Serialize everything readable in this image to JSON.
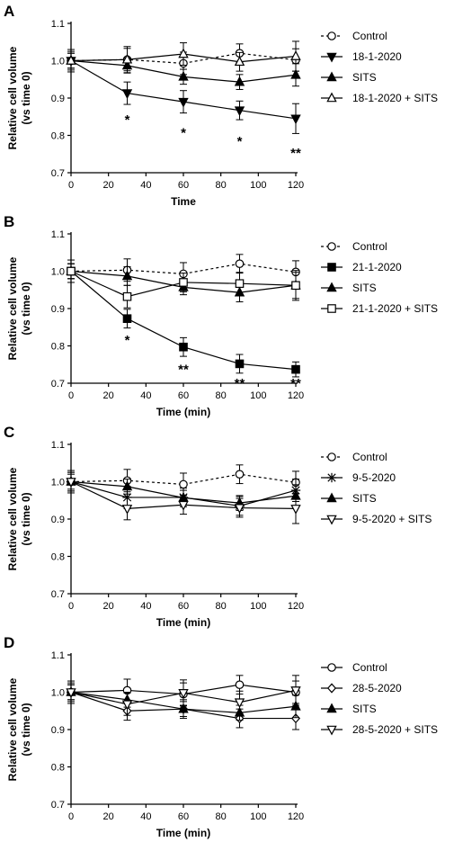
{
  "figure": {
    "panels": [
      "A",
      "B",
      "C",
      "D"
    ]
  },
  "chart_data": [
    {
      "panel": "A",
      "type": "line",
      "xlabel": "Time",
      "ylabel": "Relative cell volume (vs time 0)",
      "ylabel_lines": [
        "Relative cell volume",
        "(vs time 0)"
      ],
      "xlim": [
        0,
        120
      ],
      "ylim": [
        0.7,
        1.1
      ],
      "xticks": [
        0,
        20,
        40,
        60,
        80,
        100,
        120
      ],
      "yticks": [
        0.7,
        0.8,
        0.9,
        1.0,
        1.1
      ],
      "legend_position": "right",
      "x": [
        0,
        30,
        60,
        90,
        120
      ],
      "series": [
        {
          "name": "Control",
          "marker": "circle-open",
          "dashed": true,
          "values": [
            1.0,
            1.003,
            0.993,
            1.02,
            1.002
          ],
          "err": [
            0.03,
            0.03,
            0.03,
            0.025,
            0.03
          ]
        },
        {
          "name": "18-1-2020",
          "marker": "triangle-down-filled",
          "dashed": false,
          "values": [
            1.0,
            0.913,
            0.89,
            0.867,
            0.845
          ],
          "err": [
            0.025,
            0.03,
            0.03,
            0.025,
            0.04
          ]
        },
        {
          "name": "SITS",
          "marker": "triangle-up-filled",
          "dashed": false,
          "values": [
            1.0,
            0.987,
            0.957,
            0.943,
            0.962
          ],
          "err": [
            0.02,
            0.02,
            0.02,
            0.02,
            0.03
          ]
        },
        {
          "name": "18-1-2020 + SITS",
          "marker": "triangle-up-open",
          "dashed": false,
          "values": [
            1.0,
            1.003,
            1.018,
            0.997,
            1.012
          ],
          "err": [
            0.02,
            0.035,
            0.03,
            0.025,
            0.04
          ]
        }
      ],
      "annotations": [
        {
          "x": 30,
          "y": 0.845,
          "text": "*"
        },
        {
          "x": 60,
          "y": 0.81,
          "text": "*"
        },
        {
          "x": 90,
          "y": 0.787,
          "text": "*"
        },
        {
          "x": 120,
          "y": 0.755,
          "text": "**"
        }
      ]
    },
    {
      "panel": "B",
      "type": "line",
      "xlabel": "Time (min)",
      "ylabel": "Relative cell volume (vs time 0)",
      "ylabel_lines": [
        "Relative cell volume",
        "(vs time 0)"
      ],
      "xlim": [
        0,
        120
      ],
      "ylim": [
        0.7,
        1.1
      ],
      "xticks": [
        0,
        20,
        40,
        60,
        80,
        100,
        120
      ],
      "yticks": [
        0.7,
        0.8,
        0.9,
        1.0,
        1.1
      ],
      "legend_position": "right",
      "x": [
        0,
        30,
        60,
        90,
        120
      ],
      "series": [
        {
          "name": "Control",
          "marker": "circle-open",
          "dashed": true,
          "values": [
            1.0,
            1.003,
            0.993,
            1.02,
            0.998
          ],
          "err": [
            0.03,
            0.03,
            0.03,
            0.025,
            0.03
          ]
        },
        {
          "name": "21-1-2020",
          "marker": "square-filled",
          "dashed": false,
          "values": [
            1.0,
            0.873,
            0.797,
            0.752,
            0.737
          ],
          "err": [
            0.02,
            0.025,
            0.025,
            0.025,
            0.02
          ]
        },
        {
          "name": "SITS",
          "marker": "triangle-up-filled",
          "dashed": false,
          "values": [
            1.0,
            0.987,
            0.957,
            0.943,
            0.962
          ],
          "err": [
            0.02,
            0.025,
            0.02,
            0.025,
            0.035
          ]
        },
        {
          "name": "21-1-2020 + SITS",
          "marker": "square-open",
          "dashed": false,
          "values": [
            1.0,
            0.932,
            0.97,
            0.967,
            0.962
          ],
          "err": [
            0.02,
            0.03,
            0.025,
            0.03,
            0.04
          ]
        }
      ],
      "annotations": [
        {
          "x": 30,
          "y": 0.818,
          "text": "*"
        },
        {
          "x": 60,
          "y": 0.74,
          "text": "**"
        },
        {
          "x": 90,
          "y": 0.703,
          "text": "**"
        },
        {
          "x": 120,
          "y": 0.703,
          "text": "**"
        }
      ]
    },
    {
      "panel": "C",
      "type": "line",
      "xlabel": "Time  (min)",
      "ylabel": "Relative cell volume (vs time 0)",
      "ylabel_lines": [
        "Relative cell volume",
        "(vs time 0)"
      ],
      "xlim": [
        0,
        120
      ],
      "ylim": [
        0.7,
        1.1
      ],
      "xticks": [
        0,
        20,
        40,
        60,
        80,
        100,
        120
      ],
      "yticks": [
        0.7,
        0.8,
        0.9,
        1.0,
        1.1
      ],
      "legend_position": "right",
      "x": [
        0,
        30,
        60,
        90,
        120
      ],
      "series": [
        {
          "name": "Control",
          "marker": "circle-open",
          "dashed": true,
          "values": [
            1.0,
            1.003,
            0.993,
            1.02,
            0.998
          ],
          "err": [
            0.03,
            0.03,
            0.03,
            0.025,
            0.03
          ]
        },
        {
          "name": "9-5-2020",
          "marker": "asterisk",
          "dashed": false,
          "values": [
            1.0,
            0.958,
            0.958,
            0.935,
            0.977
          ],
          "err": [
            0.025,
            0.03,
            0.025,
            0.025,
            0.03
          ]
        },
        {
          "name": "SITS",
          "marker": "triangle-up-filled",
          "dashed": false,
          "values": [
            1.0,
            0.987,
            0.957,
            0.943,
            0.962
          ],
          "err": [
            0.02,
            0.02,
            0.02,
            0.02,
            0.03
          ]
        },
        {
          "name": "9-5-2020 + SITS",
          "marker": "triangle-down-open",
          "dashed": false,
          "values": [
            1.0,
            0.928,
            0.938,
            0.93,
            0.928
          ],
          "err": [
            0.025,
            0.03,
            0.025,
            0.025,
            0.04
          ]
        }
      ],
      "annotations": []
    },
    {
      "panel": "D",
      "type": "line",
      "xlabel": "Time (min)",
      "ylabel": "Relative cell volume (vs time 0)",
      "ylabel_lines": [
        "Relative cell volume",
        "(vs time 0)"
      ],
      "xlim": [
        0,
        120
      ],
      "ylim": [
        0.7,
        1.1
      ],
      "xticks": [
        0,
        20,
        40,
        60,
        80,
        100,
        120
      ],
      "yticks": [
        0.7,
        0.8,
        0.9,
        1.0,
        1.1
      ],
      "legend_position": "right",
      "x": [
        0,
        30,
        60,
        90,
        120
      ],
      "series": [
        {
          "name": "Control",
          "marker": "circle-open",
          "dashed": false,
          "values": [
            1.0,
            1.005,
            0.995,
            1.02,
            1.0
          ],
          "err": [
            0.03,
            0.03,
            0.03,
            0.025,
            0.03
          ]
        },
        {
          "name": "28-5-2020",
          "marker": "diamond-open",
          "dashed": false,
          "values": [
            1.0,
            0.95,
            0.955,
            0.93,
            0.93
          ],
          "err": [
            0.02,
            0.025,
            0.025,
            0.025,
            0.03
          ]
        },
        {
          "name": "SITS",
          "marker": "triangle-up-filled",
          "dashed": false,
          "values": [
            1.0,
            0.98,
            0.955,
            0.945,
            0.962
          ],
          "err": [
            0.02,
            0.02,
            0.02,
            0.02,
            0.03
          ]
        },
        {
          "name": "28-5-2020 + SITS",
          "marker": "triangle-down-open",
          "dashed": false,
          "values": [
            1.0,
            0.968,
            0.998,
            0.973,
            1.005
          ],
          "err": [
            0.025,
            0.03,
            0.035,
            0.03,
            0.04
          ]
        }
      ],
      "annotations": []
    }
  ]
}
